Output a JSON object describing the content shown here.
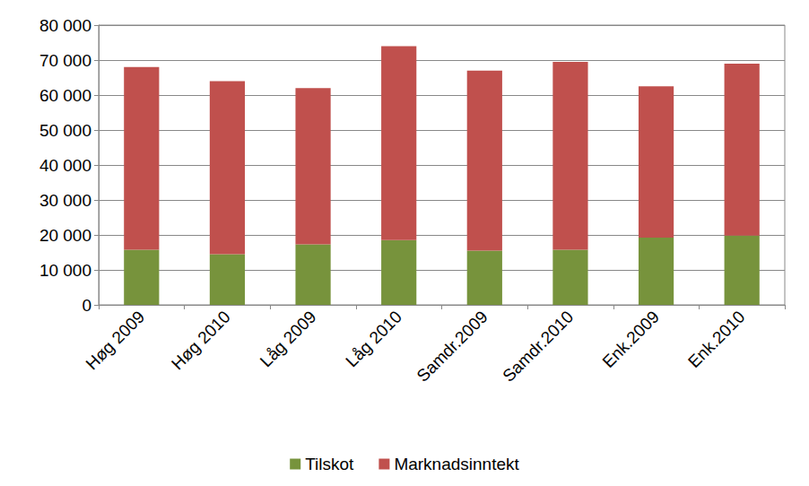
{
  "chart_data": {
    "type": "bar",
    "stacked": true,
    "grid": true,
    "legend": "bottom",
    "categories": [
      "Høg 2009",
      "Høg 2010",
      "Låg 2009",
      "Låg 2010",
      "Samdr.2009",
      "Samdr.2010",
      "Enk.2009",
      "Enk.2010"
    ],
    "series": [
      {
        "name": "Tilskot",
        "color": "#77933c",
        "values": [
          15800,
          14500,
          17300,
          18500,
          15500,
          15800,
          19200,
          19800
        ]
      },
      {
        "name": "Marknadsinntekt",
        "color": "#c0504d",
        "values": [
          52200,
          49500,
          44700,
          55500,
          51500,
          53700,
          43300,
          49200
        ]
      }
    ],
    "ylim": [
      0,
      80000
    ],
    "yticks": [
      0,
      {
        "value": 10000,
        "label": "10 000"
      },
      {
        "value": 20000,
        "label": "20 000"
      },
      {
        "value": 30000,
        "label": "30 000"
      },
      {
        "value": 40000,
        "label": "40 000"
      },
      {
        "value": 50000,
        "label": "50 000"
      },
      {
        "value": 60000,
        "label": "60 000"
      },
      {
        "value": 70000,
        "label": "70 000"
      },
      {
        "value": 80000,
        "label": "80 000"
      }
    ]
  }
}
